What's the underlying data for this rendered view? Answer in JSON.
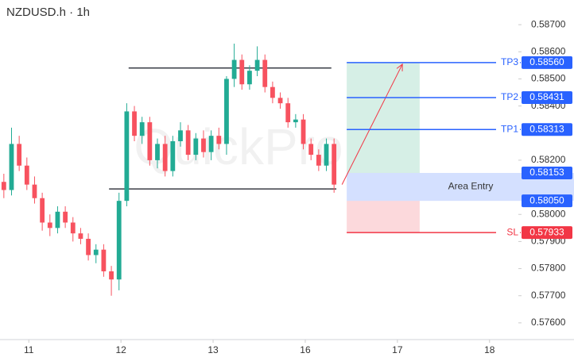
{
  "chart_data": {
    "type": "candlestick",
    "title": "NZDUSD.h · 1h",
    "watermark": "QuickPro",
    "up_color": "#22ab94",
    "down_color": "#f7525f",
    "x": [
      1,
      3,
      5,
      7,
      9,
      11,
      13,
      15,
      17,
      19,
      21,
      23,
      25,
      27,
      29,
      31,
      33,
      35,
      37,
      39,
      41,
      43,
      45,
      47,
      49,
      51,
      53,
      55,
      57,
      59,
      61,
      63,
      65,
      67,
      69,
      71,
      73,
      75,
      77,
      79,
      81,
      83,
      85,
      87
    ],
    "open": [
      0.5812,
      0.5809,
      0.5826,
      0.5818,
      0.5811,
      0.5806,
      0.5797,
      0.5795,
      0.5801,
      0.5797,
      0.5793,
      0.5791,
      0.5785,
      0.5787,
      0.5779,
      0.5776,
      0.5805,
      0.5838,
      0.5829,
      0.5834,
      0.582,
      0.5826,
      0.5816,
      0.5827,
      0.5831,
      0.5822,
      0.5828,
      0.5823,
      0.5829,
      0.5826,
      0.585,
      0.5857,
      0.5848,
      0.5853,
      0.5857,
      0.5847,
      0.5843,
      0.5841,
      0.5834,
      0.5835,
      0.5826,
      0.5822,
      0.5818,
      0.5826
    ],
    "high": [
      0.5815,
      0.5832,
      0.5829,
      0.5821,
      0.5814,
      0.5808,
      0.58,
      0.5803,
      0.5803,
      0.5799,
      0.5795,
      0.5793,
      0.5789,
      0.5789,
      0.5781,
      0.5808,
      0.5841,
      0.584,
      0.5836,
      0.5836,
      0.5828,
      0.5829,
      0.5829,
      0.5834,
      0.5833,
      0.583,
      0.5831,
      0.5831,
      0.5832,
      0.5851,
      0.5863,
      0.5859,
      0.5855,
      0.5862,
      0.5859,
      0.5849,
      0.5845,
      0.5843,
      0.5837,
      0.5837,
      0.5828,
      0.5824,
      0.5828,
      0.5828
    ],
    "low": [
      0.5806,
      0.5807,
      0.5816,
      0.5809,
      0.5804,
      0.5794,
      0.5792,
      0.5793,
      0.5795,
      0.579,
      0.5789,
      0.5783,
      0.5782,
      0.5777,
      0.577,
      0.5772,
      0.5803,
      0.5827,
      0.5826,
      0.5818,
      0.5817,
      0.5814,
      0.5814,
      0.5825,
      0.582,
      0.582,
      0.5821,
      0.582,
      0.5824,
      0.5822,
      0.5847,
      0.5846,
      0.5846,
      0.5851,
      0.5845,
      0.5841,
      0.5839,
      0.5832,
      0.5832,
      0.5824,
      0.582,
      0.5816,
      0.5816,
      0.5808
    ],
    "close": [
      0.5809,
      0.5826,
      0.5818,
      0.5811,
      0.5806,
      0.5797,
      0.5795,
      0.5801,
      0.5797,
      0.5793,
      0.5791,
      0.5785,
      0.5787,
      0.5779,
      0.5776,
      0.5805,
      0.5838,
      0.5829,
      0.5834,
      0.582,
      0.5826,
      0.5816,
      0.5827,
      0.5831,
      0.5822,
      0.5828,
      0.5823,
      0.5829,
      0.5826,
      0.585,
      0.5857,
      0.5848,
      0.5853,
      0.5857,
      0.5847,
      0.5843,
      0.5841,
      0.5834,
      0.5835,
      0.5826,
      0.5822,
      0.5818,
      0.5826,
      0.5811
    ],
    "xlim": [
      0,
      135
    ],
    "xticks": [
      {
        "value": 7.5,
        "label": "11"
      },
      {
        "value": 31.5,
        "label": "12"
      },
      {
        "value": 55.5,
        "label": "13"
      },
      {
        "value": 79.5,
        "label": "16"
      },
      {
        "value": 103.5,
        "label": "17"
      },
      {
        "value": 127.5,
        "label": "18"
      }
    ],
    "ylim": [
      0.57547,
      0.58791
    ],
    "yticks": [
      {
        "value": 0.587,
        "label": "0.58700"
      },
      {
        "value": 0.586,
        "label": "0.58600"
      },
      {
        "value": 0.585,
        "label": "0.58500"
      },
      {
        "value": 0.584,
        "label": "0.58400"
      },
      {
        "value": 0.582,
        "label": "0.58200"
      },
      {
        "value": 0.58,
        "label": "0.58000"
      },
      {
        "value": 0.579,
        "label": "0.57900"
      },
      {
        "value": 0.578,
        "label": "0.57800"
      },
      {
        "value": 0.577,
        "label": "0.57700"
      },
      {
        "value": 0.576,
        "label": "0.57600"
      }
    ],
    "lines": [
      {
        "value": 0.5854,
        "x": [
          33.5,
          86.3
        ]
      },
      {
        "value": 0.58094,
        "x": [
          28.4,
          87.6
        ]
      }
    ],
    "projection_x": [
      90.3,
      109.3
    ],
    "levels": [
      {
        "name": "TP3",
        "value": 0.5856,
        "value_label": "0.58560",
        "color": "#2962ff"
      },
      {
        "name": "TP2",
        "value": 0.58431,
        "value_label": "0.58431",
        "color": "#2962ff"
      },
      {
        "name": "TP1",
        "value": 0.58313,
        "value_label": "0.58313",
        "color": "#2962ff"
      },
      {
        "name": "SL",
        "value": 0.57933,
        "value_label": "0.57933",
        "color": "#f23645"
      }
    ],
    "entry": {
      "name": "Area Entry",
      "top": 0.58153,
      "top_label": "0.58153",
      "bottom": 0.5805,
      "bottom_label": "0.58050",
      "color": "#2962ff"
    }
  }
}
